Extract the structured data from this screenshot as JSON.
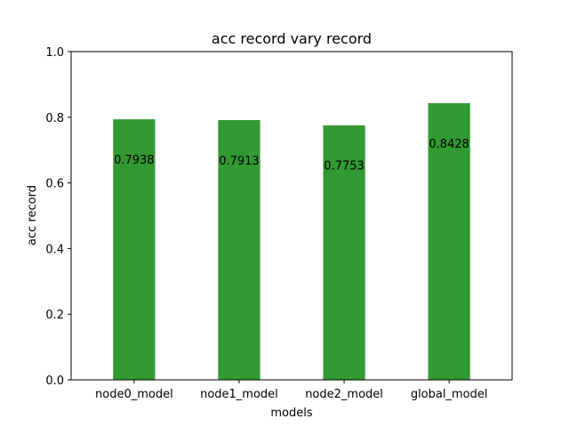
{
  "chart_data": {
    "type": "bar",
    "title": "acc record vary record",
    "xlabel": "models",
    "ylabel": "acc record",
    "categories": [
      "node0_model",
      "node1_model",
      "node2_model",
      "global_model"
    ],
    "values": [
      0.7938,
      0.7913,
      0.7753,
      0.8428
    ],
    "value_labels": [
      "0.7938",
      "0.7913",
      "0.7753",
      "0.8428"
    ],
    "ylim": [
      0,
      1.0
    ],
    "yticks": [
      0.0,
      0.2,
      0.4,
      0.6,
      0.8,
      1.0
    ],
    "ytick_labels": [
      "0.0",
      "0.2",
      "0.4",
      "0.6",
      "0.8",
      "1.0"
    ],
    "bar_color": "#339933",
    "grid": false,
    "legend": "none"
  }
}
